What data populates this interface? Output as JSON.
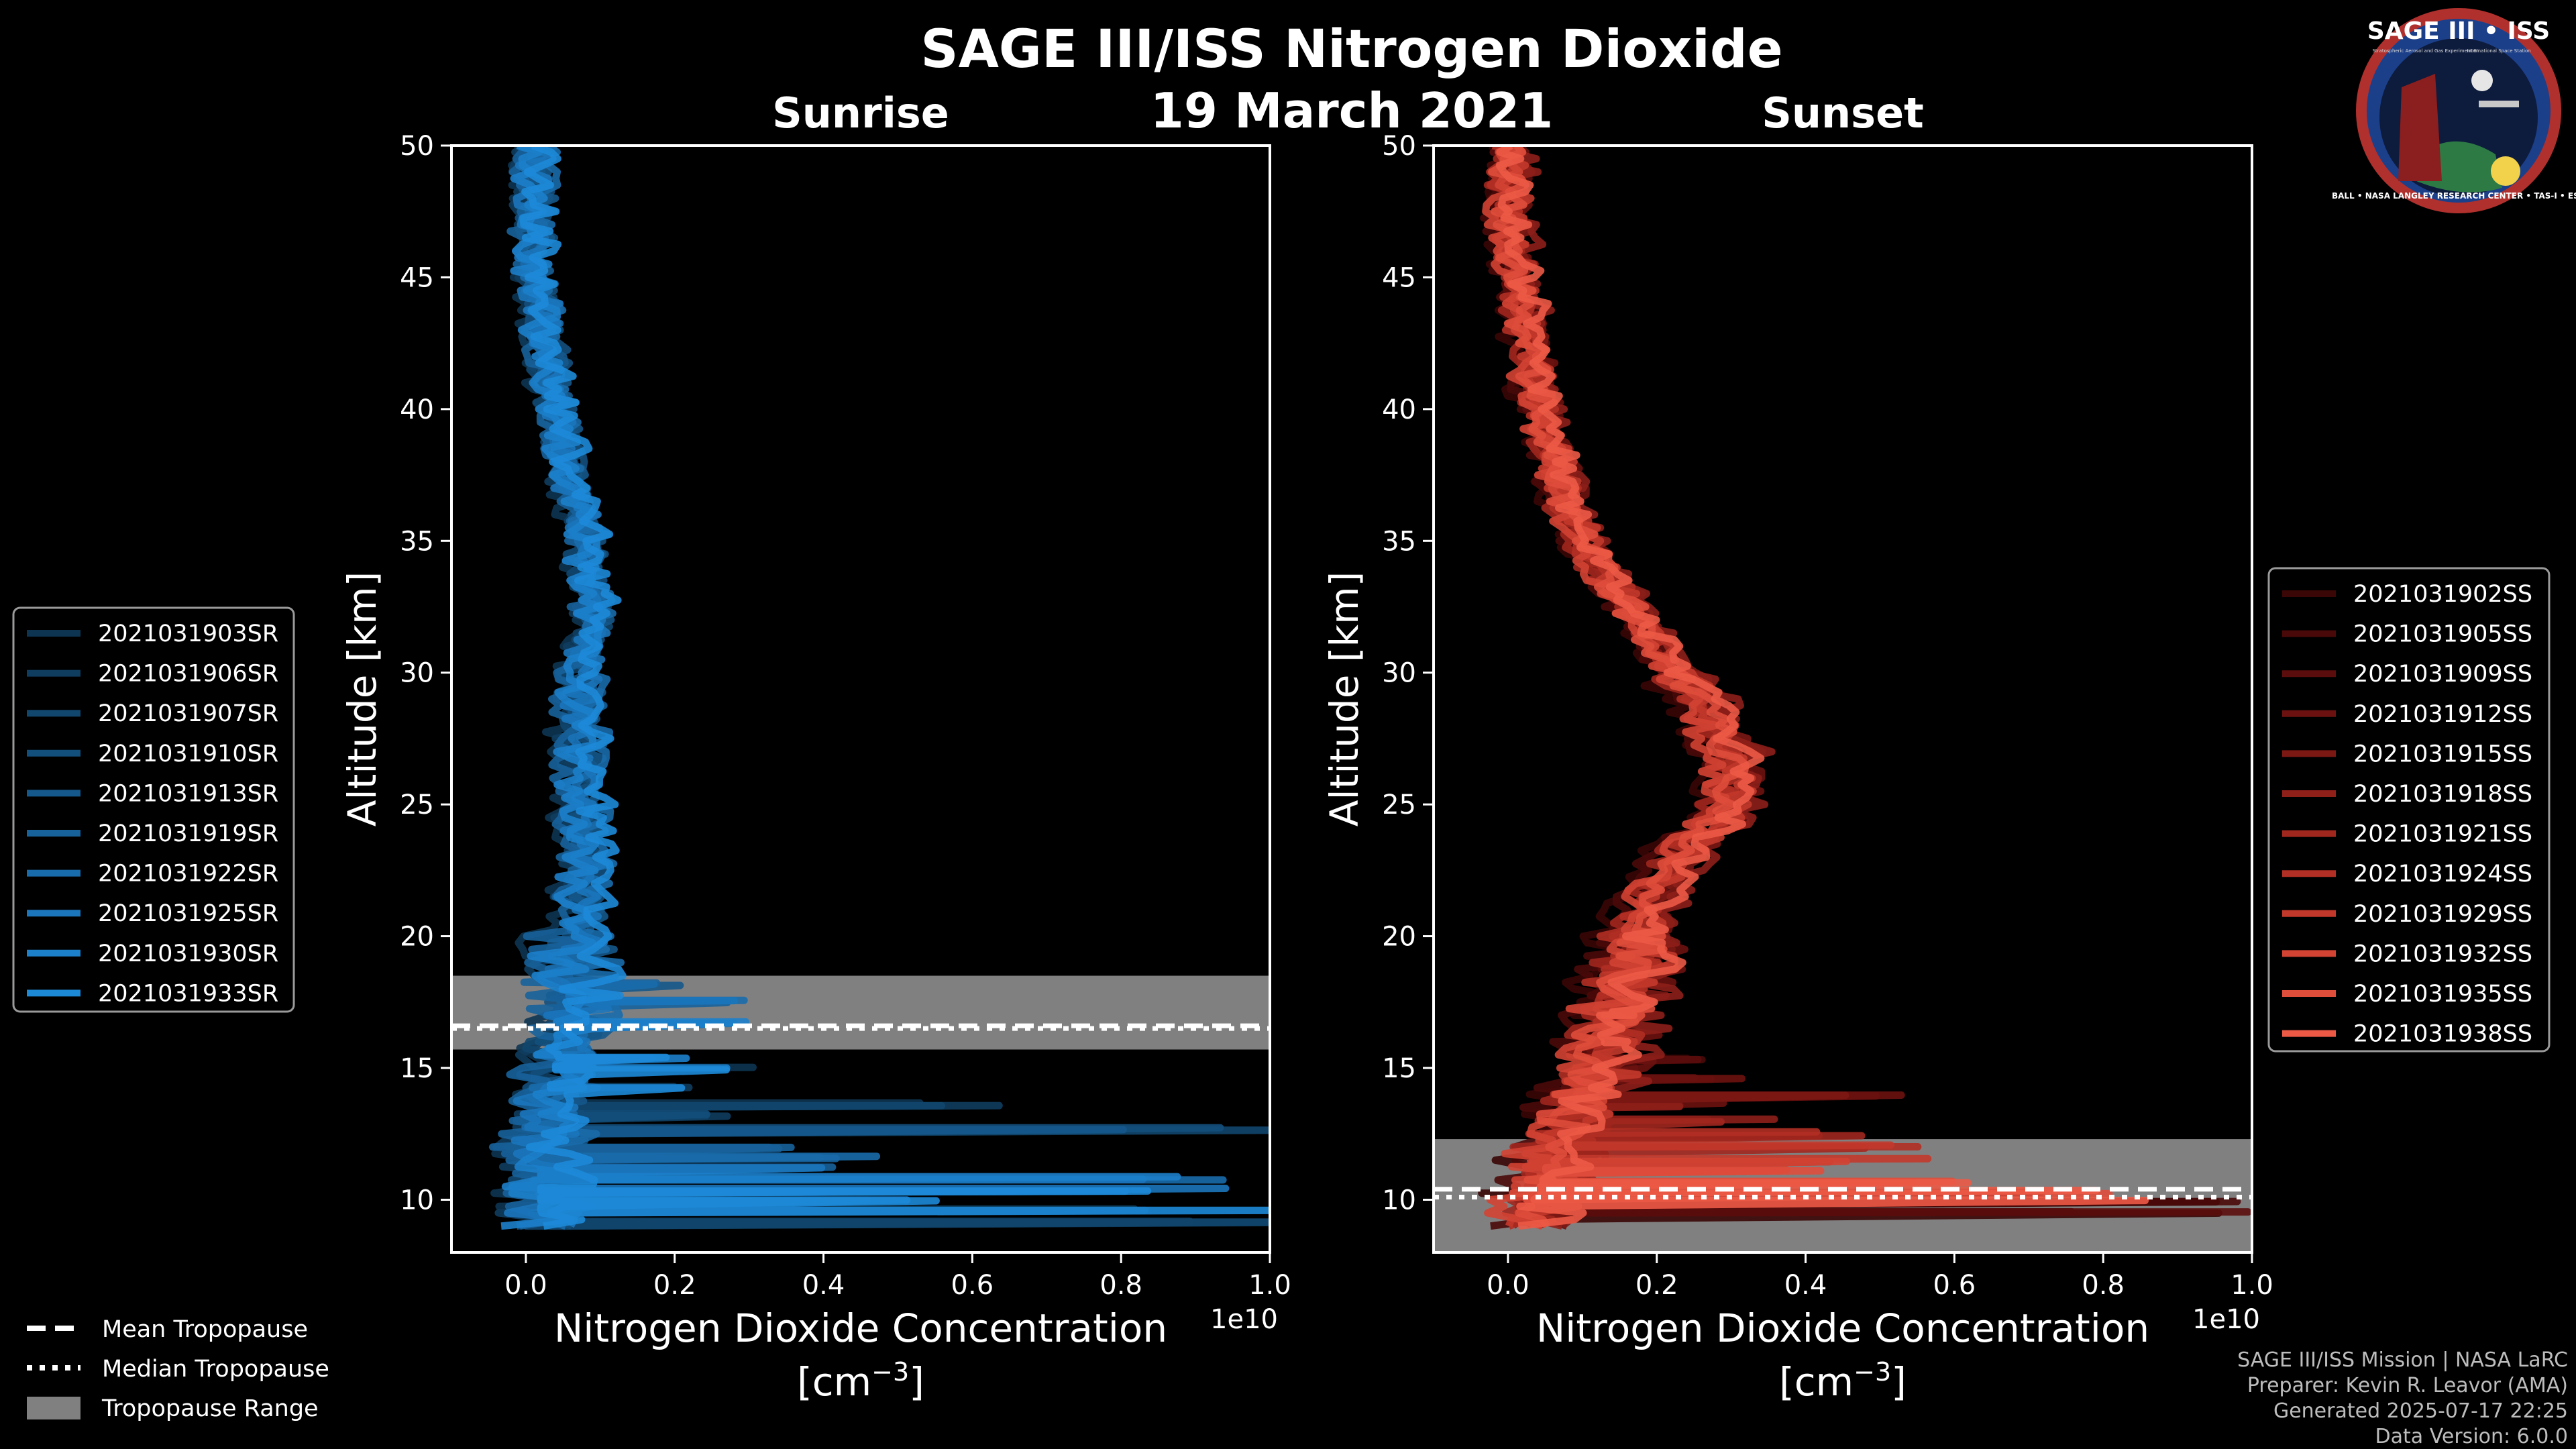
{
  "figure": {
    "title": "SAGE III/ISS Nitrogen Dioxide",
    "date": "19 March 2021",
    "credits": [
      "SAGE III/ISS Mission | NASA LaRC",
      "Preparer: Kevin R. Leavor (AMA)",
      "Generated 2025-07-17 22:25",
      "Data Version: 6.0.0"
    ],
    "badge": {
      "title": "SAGE III • ISS",
      "subtitle_left": "Stratospheric Aerosol and Gas Experiment III",
      "subtitle_right": "International Space Station",
      "ring_text": "BALL • NASA LANGLEY RESEARCH CENTER • TAS-I • ESA"
    },
    "tropopause_legend": [
      "Mean Tropopause",
      "Median Tropopause",
      "Tropopause Range"
    ]
  },
  "colors": {
    "background": "#000000",
    "sunrise_series": [
      "#0d3552",
      "#0f3d5f",
      "#11466d",
      "#134f7c",
      "#15588b",
      "#17629b",
      "#196cab",
      "#1b76bb",
      "#1c80ca",
      "#1d8ad8"
    ],
    "sunset_series": [
      "#3a0606",
      "#4a0909",
      "#5a0d0c",
      "#6b1210",
      "#7c1814",
      "#8e1f19",
      "#a0271e",
      "#b12f24",
      "#c2382b",
      "#d24333",
      "#df4d3b",
      "#ec5a46"
    ],
    "tropopause_band": "#808080"
  },
  "chart_data": [
    {
      "type": "line",
      "title": "Sunrise",
      "xlabel": "Nitrogen Dioxide Concentration",
      "xlabel_unit": "[cm",
      "xlabel_exp": "−3",
      "xlabel_close": "]",
      "ylabel": "Altitude [km]",
      "x_offset_label": "1e10",
      "xlim": [
        -0.1,
        1.0
      ],
      "ylim": [
        8,
        50
      ],
      "xticks": [
        0.0,
        0.2,
        0.4,
        0.6,
        0.8,
        1.0
      ],
      "xtick_labels": [
        "0.0",
        "0.2",
        "0.4",
        "0.6",
        "0.8",
        "1.0"
      ],
      "yticks": [
        10,
        15,
        20,
        25,
        30,
        35,
        40,
        45,
        50
      ],
      "ytick_labels": [
        "10",
        "15",
        "20",
        "25",
        "30",
        "35",
        "40",
        "45",
        "50"
      ],
      "legend_position": "left",
      "tropopause": {
        "mean": 16.6,
        "median": 16.5,
        "range": [
          15.7,
          18.5
        ]
      },
      "base_profile": {
        "altitude_km": [
          9,
          10,
          11,
          12,
          13,
          14,
          15,
          16,
          17,
          18,
          19,
          20,
          21,
          22,
          23,
          24,
          25,
          26,
          27,
          28,
          29,
          30,
          31,
          32,
          33,
          34,
          35,
          36,
          37,
          38,
          39,
          40,
          41,
          42,
          43,
          44,
          45,
          46,
          47,
          48,
          49,
          50
        ],
        "no2_1e10": [
          0.02,
          0.02,
          0.02,
          0.02,
          0.03,
          0.03,
          0.04,
          0.05,
          0.06,
          0.06,
          0.06,
          0.06,
          0.07,
          0.07,
          0.08,
          0.07,
          0.07,
          0.07,
          0.07,
          0.07,
          0.07,
          0.07,
          0.08,
          0.09,
          0.09,
          0.08,
          0.08,
          0.07,
          0.06,
          0.05,
          0.05,
          0.04,
          0.03,
          0.03,
          0.02,
          0.02,
          0.01,
          0.01,
          0.01,
          0.01,
          0.01,
          0.01
        ]
      },
      "series": [
        {
          "name": "2021031903SR",
          "offset": -0.02
        },
        {
          "name": "2021031906SR",
          "offset": -0.01
        },
        {
          "name": "2021031907SR",
          "offset": 0.0
        },
        {
          "name": "2021031910SR",
          "offset": 0.01
        },
        {
          "name": "2021031913SR",
          "offset": 0.015
        },
        {
          "name": "2021031919SR",
          "offset": -0.015
        },
        {
          "name": "2021031922SR",
          "offset": 0.02
        },
        {
          "name": "2021031925SR",
          "offset": 0.005
        },
        {
          "name": "2021031930SR",
          "offset": -0.005
        },
        {
          "name": "2021031933SR",
          "offset": 0.025
        }
      ],
      "spikes": [
        {
          "altitude": 9.2,
          "value": 1.0
        },
        {
          "altitude": 9.6,
          "value": 1.0
        },
        {
          "altitude": 10.0,
          "value": 0.55
        },
        {
          "altitude": 10.4,
          "value": 1.0
        },
        {
          "altitude": 10.8,
          "value": 1.0
        },
        {
          "altitude": 11.2,
          "value": 0.4
        },
        {
          "altitude": 11.6,
          "value": 0.5
        },
        {
          "altitude": 12.0,
          "value": 0.35
        },
        {
          "altitude": 12.7,
          "value": 1.0
        },
        {
          "altitude": 13.2,
          "value": 0.3
        },
        {
          "altitude": 13.6,
          "value": 0.67
        },
        {
          "altitude": 14.3,
          "value": 0.25
        },
        {
          "altitude": 15.0,
          "value": 0.3
        },
        {
          "altitude": 15.4,
          "value": 0.22
        },
        {
          "altitude": 16.7,
          "value": 0.3
        },
        {
          "altitude": 17.5,
          "value": 0.35
        },
        {
          "altitude": 18.2,
          "value": 0.2
        }
      ]
    },
    {
      "type": "line",
      "title": "Sunset",
      "xlabel": "Nitrogen Dioxide Concentration",
      "xlabel_unit": "[cm",
      "xlabel_exp": "−3",
      "xlabel_close": "]",
      "ylabel": "Altitude [km]",
      "x_offset_label": "1e10",
      "xlim": [
        -0.1,
        1.0
      ],
      "ylim": [
        8,
        50
      ],
      "xticks": [
        0.0,
        0.2,
        0.4,
        0.6,
        0.8,
        1.0
      ],
      "xtick_labels": [
        "0.0",
        "0.2",
        "0.4",
        "0.6",
        "0.8",
        "1.0"
      ],
      "yticks": [
        10,
        15,
        20,
        25,
        30,
        35,
        40,
        45,
        50
      ],
      "ytick_labels": [
        "10",
        "15",
        "20",
        "25",
        "30",
        "35",
        "40",
        "45",
        "50"
      ],
      "legend_position": "right",
      "tropopause": {
        "mean": 10.4,
        "median": 10.1,
        "range": [
          8,
          12.3
        ]
      },
      "base_profile": {
        "altitude_km": [
          9,
          10,
          11,
          12,
          13,
          14,
          15,
          16,
          17,
          18,
          19,
          20,
          21,
          22,
          23,
          24,
          25,
          26,
          27,
          28,
          29,
          30,
          31,
          32,
          33,
          34,
          35,
          36,
          37,
          38,
          39,
          40,
          41,
          42,
          43,
          44,
          45,
          46,
          47,
          48,
          49,
          50
        ],
        "no2_1e10": [
          0.03,
          0.04,
          0.05,
          0.06,
          0.08,
          0.1,
          0.12,
          0.13,
          0.14,
          0.15,
          0.16,
          0.17,
          0.18,
          0.2,
          0.22,
          0.26,
          0.29,
          0.3,
          0.29,
          0.27,
          0.25,
          0.22,
          0.2,
          0.17,
          0.15,
          0.12,
          0.1,
          0.08,
          0.07,
          0.06,
          0.05,
          0.04,
          0.03,
          0.03,
          0.02,
          0.02,
          0.01,
          0.01,
          0.0,
          0.0,
          0.0,
          0.0
        ]
      },
      "series": [
        {
          "name": "2021031902SS",
          "offset": -0.03
        },
        {
          "name": "2021031905SS",
          "offset": -0.02
        },
        {
          "name": "2021031909SS",
          "offset": 0.01
        },
        {
          "name": "2021031912SS",
          "offset": 0.03
        },
        {
          "name": "2021031915SS",
          "offset": 0.02
        },
        {
          "name": "2021031918SS",
          "offset": 0.04
        },
        {
          "name": "2021031921SS",
          "offset": -0.01
        },
        {
          "name": "2021031924SS",
          "offset": 0.0
        },
        {
          "name": "2021031929SS",
          "offset": 0.015
        },
        {
          "name": "2021031932SS",
          "offset": -0.015
        },
        {
          "name": "2021031935SS",
          "offset": 0.005
        },
        {
          "name": "2021031938SS",
          "offset": 0.025
        }
      ],
      "spikes": [
        {
          "altitude": 9.5,
          "value": 1.0
        },
        {
          "altitude": 9.9,
          "value": 1.0
        },
        {
          "altitude": 10.3,
          "value": 0.8
        },
        {
          "altitude": 10.7,
          "value": 0.6
        },
        {
          "altitude": 11.1,
          "value": 0.45
        },
        {
          "altitude": 11.5,
          "value": 0.55
        },
        {
          "altitude": 12.0,
          "value": 0.6
        },
        {
          "altitude": 12.5,
          "value": 0.5
        },
        {
          "altitude": 13.0,
          "value": 0.35
        },
        {
          "altitude": 13.6,
          "value": 0.3
        },
        {
          "altitude": 14.0,
          "value": 0.52
        },
        {
          "altitude": 14.6,
          "value": 0.3
        },
        {
          "altitude": 15.3,
          "value": 0.25
        },
        {
          "altitude": 16.0,
          "value": 0.2
        },
        {
          "altitude": 17.0,
          "value": 0.15
        }
      ]
    }
  ]
}
